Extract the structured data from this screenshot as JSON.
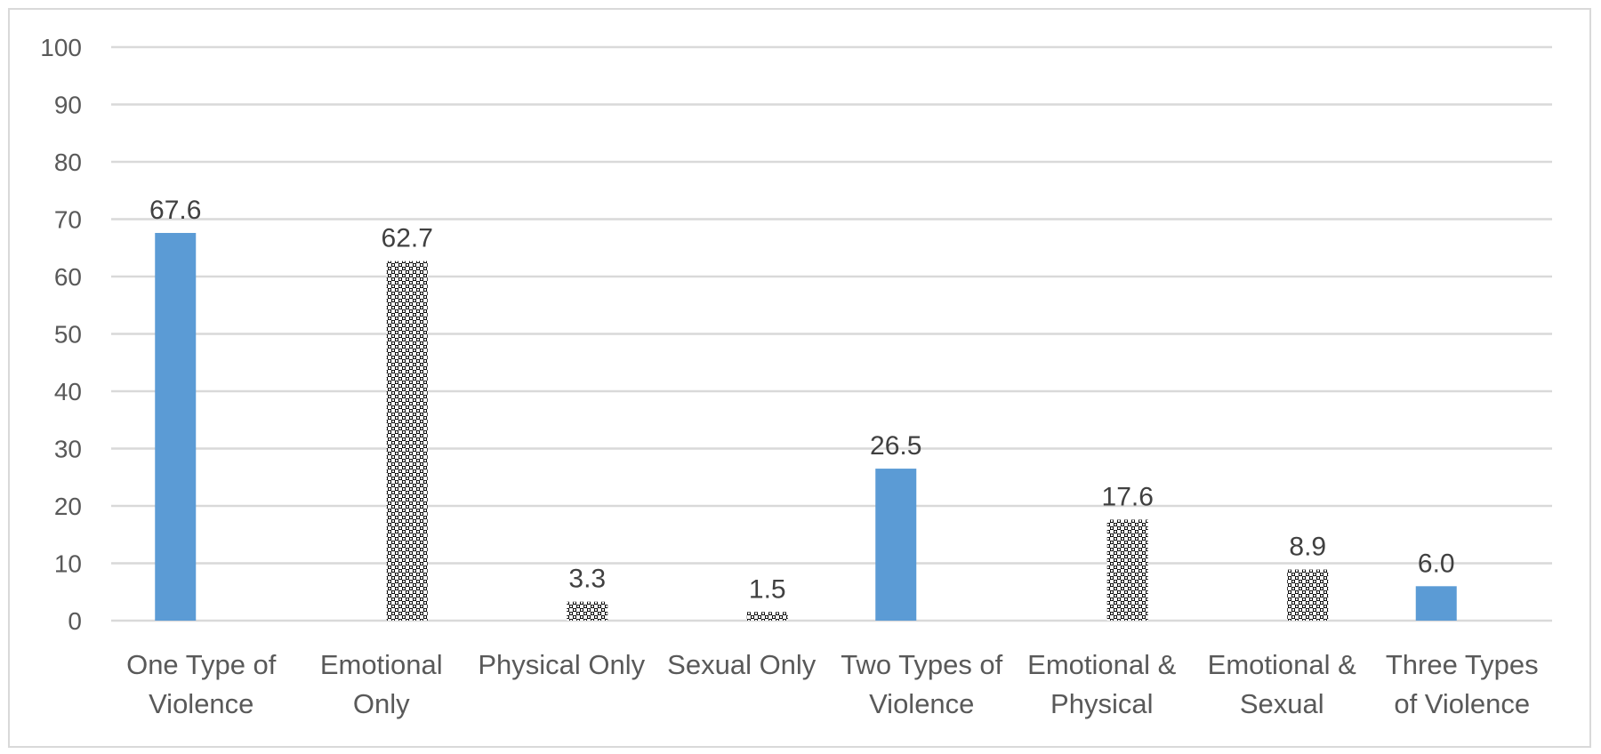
{
  "chart_data": {
    "type": "bar",
    "title": "",
    "xlabel": "",
    "ylabel": "",
    "ylim": [
      0,
      100
    ],
    "yticks": [
      0,
      10,
      20,
      30,
      40,
      50,
      60,
      70,
      80,
      90,
      100
    ],
    "grid": true,
    "legend": "none",
    "categories": [
      [
        "One Type of",
        "Violence"
      ],
      [
        "Emotional",
        "Only"
      ],
      [
        "Physical Only"
      ],
      [
        "Sexual Only"
      ],
      [
        "Two Types of",
        "Violence"
      ],
      [
        "Emotional &",
        "Physical"
      ],
      [
        "Emotional &",
        "Sexual"
      ],
      [
        "Three Types",
        "of Violence"
      ]
    ],
    "values": [
      67.6,
      62.7,
      3.3,
      1.5,
      26.5,
      17.6,
      8.9,
      6.0
    ],
    "data_labels": [
      "67.6",
      "62.7",
      "3.3",
      "1.5",
      "26.5",
      "17.6",
      "8.9",
      "6.0"
    ],
    "bar_styles": [
      "solid",
      "hatched",
      "hatched",
      "hatched",
      "solid",
      "hatched",
      "hatched",
      "solid"
    ],
    "bar_offsets": [
      "left",
      "right",
      "right",
      "right",
      "left",
      "right",
      "right",
      "left"
    ],
    "colors": {
      "solid": "#5b9bd5",
      "hatch_fg": "#000000",
      "hatch_bg": "#ffffff",
      "grid": "#d9d9d9",
      "axis": "#d9d9d9",
      "tick_text": "#595959",
      "label_text": "#404040"
    }
  }
}
